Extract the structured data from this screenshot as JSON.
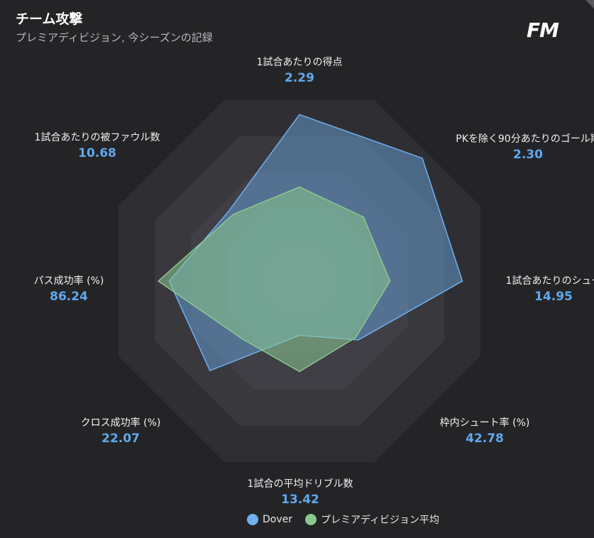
{
  "header": {
    "title": "チーム攻撃",
    "subtitle": "プレミアディビジョン, 今シーズンの記録",
    "logo_text": "FM"
  },
  "colors": {
    "background": "#242426",
    "series_dover": "#6fb0ee",
    "series_average": "#8bc890",
    "value_text": "#5fa9ef"
  },
  "chart_data": {
    "type": "radar",
    "axes": [
      {
        "label": "1試合あたりの得点",
        "value_label": "2.29"
      },
      {
        "label": "PKを除く90分あたりのゴール期",
        "value_label": "2.30"
      },
      {
        "label": "1試合あたりのシュー",
        "value_label": "14.95"
      },
      {
        "label": "枠内シュート率 (%)",
        "value_label": "42.78"
      },
      {
        "label": "1試合の平均ドリブル数",
        "value_label": "13.42"
      },
      {
        "label": "クロス成功率 (%)",
        "value_label": "22.07"
      },
      {
        "label": "パス成功率 (%)",
        "value_label": "86.24"
      },
      {
        "label": "1試合あたりの被ファウル数",
        "value_label": "10.68"
      }
    ],
    "series": [
      {
        "name": "Dover",
        "color": "#6fb0ee",
        "values": [
          0.92,
          0.96,
          0.9,
          0.46,
          0.3,
          0.7,
          0.72,
          0.55
        ]
      },
      {
        "name": "プレミアディビジョン平均",
        "color": "#8bc890",
        "values": [
          0.52,
          0.5,
          0.5,
          0.44,
          0.5,
          0.45,
          0.78,
          0.52
        ]
      }
    ],
    "rings": 5,
    "legend_position": "bottom"
  }
}
